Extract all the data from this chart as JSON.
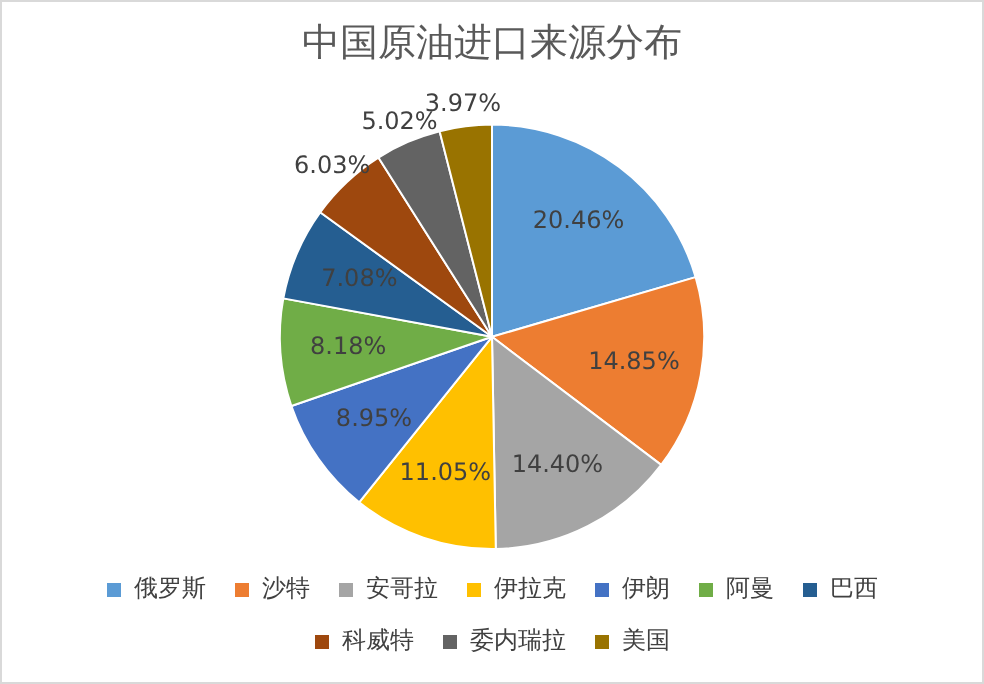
{
  "chart_data": {
    "type": "pie",
    "title": "中国原油进口来源分布",
    "categories": [
      "俄罗斯",
      "沙特",
      "安哥拉",
      "伊拉克",
      "伊朗",
      "阿曼",
      "巴西",
      "科威特",
      "委内瑞拉",
      "美国"
    ],
    "values": [
      20.46,
      14.85,
      14.4,
      11.05,
      8.95,
      8.18,
      7.08,
      6.03,
      5.02,
      3.97
    ],
    "colors": [
      "#5b9bd5",
      "#ed7d31",
      "#a5a5a5",
      "#ffc000",
      "#4472c4",
      "#70ad47",
      "#255e91",
      "#9e480e",
      "#636363",
      "#997300"
    ],
    "value_labels": [
      "20.46%",
      "14.85%",
      "14.40%",
      "11.05%",
      "8.95%",
      "8.18%",
      "7.08%",
      "6.03%",
      "5.02%",
      "3.97%"
    ],
    "legend": "bottom"
  }
}
